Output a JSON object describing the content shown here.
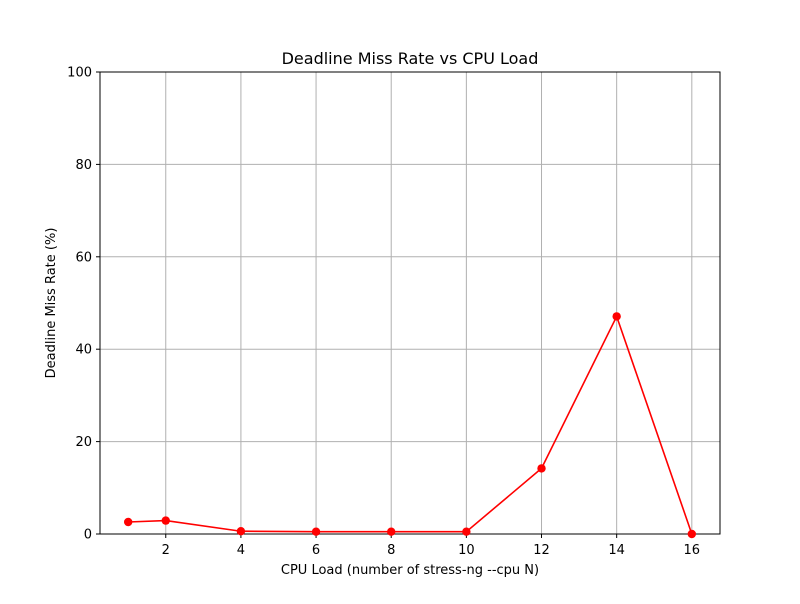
{
  "chart_data": {
    "type": "line",
    "title": "Deadline Miss Rate vs CPU Load",
    "xlabel": "CPU Load (number of stress-ng --cpu N)",
    "ylabel": "Deadline Miss Rate (%)",
    "xlim": [
      0.25,
      16.75
    ],
    "ylim": [
      0,
      100
    ],
    "xticks": [
      2,
      4,
      6,
      8,
      10,
      12,
      14,
      16
    ],
    "yticks": [
      0,
      20,
      40,
      60,
      80,
      100
    ],
    "grid": true,
    "series": [
      {
        "color": "#ff0000",
        "marker": "circle",
        "x": [
          1,
          2,
          4,
          6,
          8,
          10,
          12,
          14,
          16
        ],
        "y": [
          2.6,
          2.9,
          0.6,
          0.5,
          0.5,
          0.5,
          14.2,
          47.1,
          0.0
        ]
      }
    ]
  }
}
